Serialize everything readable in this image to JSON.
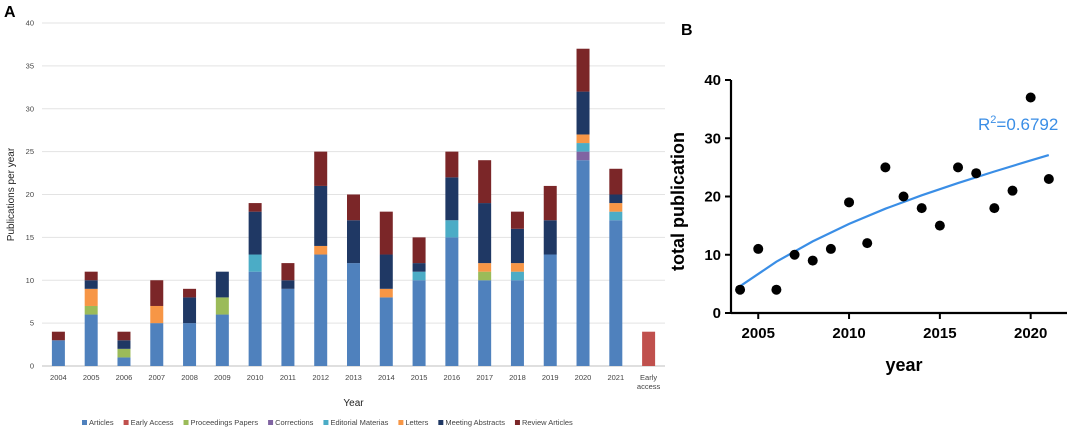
{
  "chart_data": [
    {
      "panel": "A",
      "type": "bar",
      "stacked": true,
      "xlabel": "Year",
      "ylabel": "Publications per year",
      "ylim": [
        0,
        40
      ],
      "yticks": [
        "0",
        "5",
        "10",
        "15",
        "20",
        "25",
        "30",
        "35",
        "40"
      ],
      "categories": [
        "2004",
        "2005",
        "2006",
        "2007",
        "2008",
        "2009",
        "2010",
        "2011",
        "2012",
        "2013",
        "2014",
        "2015",
        "2016",
        "2017",
        "2018",
        "2019",
        "2020",
        "2021",
        "Early access"
      ],
      "grid": true,
      "legend_position": "bottom",
      "series": [
        {
          "name": "Articles",
          "color": "#4f81bd",
          "values": [
            3,
            6,
            1,
            5,
            5,
            6,
            11,
            9,
            13,
            12,
            8,
            10,
            15,
            10,
            10,
            13,
            24,
            17,
            0
          ]
        },
        {
          "name": "Early Access",
          "color": "#c0504d",
          "values": [
            0,
            0,
            0,
            0,
            0,
            0,
            0,
            0,
            0,
            0,
            0,
            0,
            0,
            0,
            0,
            0,
            0,
            0,
            4
          ]
        },
        {
          "name": "Proceedings Papers",
          "color": "#9bbb59",
          "values": [
            0,
            1,
            1,
            0,
            0,
            2,
            0,
            0,
            0,
            0,
            0,
            0,
            0,
            1,
            0,
            0,
            0,
            0,
            0
          ]
        },
        {
          "name": "Corrections",
          "color": "#8064a2",
          "values": [
            0,
            0,
            0,
            0,
            0,
            0,
            0,
            0,
            0,
            0,
            0,
            0,
            0,
            0,
            0,
            0,
            1,
            0,
            0
          ]
        },
        {
          "name": "Editorial Materias",
          "color": "#4bacc6",
          "values": [
            0,
            0,
            0,
            0,
            0,
            0,
            2,
            0,
            0,
            0,
            0,
            1,
            2,
            0,
            1,
            0,
            1,
            1,
            0
          ]
        },
        {
          "name": "Letters",
          "color": "#f79646",
          "values": [
            0,
            2,
            0,
            2,
            0,
            0,
            0,
            0,
            1,
            0,
            1,
            0,
            0,
            1,
            1,
            0,
            1,
            1,
            0
          ]
        },
        {
          "name": "Meeting Abstracts",
          "color": "#1f3864",
          "values": [
            0,
            1,
            1,
            0,
            3,
            3,
            5,
            1,
            7,
            5,
            4,
            1,
            5,
            7,
            4,
            4,
            5,
            1,
            0
          ]
        },
        {
          "name": "Review Articles",
          "color": "#7b2628",
          "values": [
            1,
            1,
            1,
            3,
            1,
            0,
            1,
            2,
            4,
            3,
            5,
            3,
            3,
            5,
            2,
            4,
            5,
            3,
            0
          ]
        }
      ]
    },
    {
      "panel": "B",
      "type": "scatter",
      "xlabel": "year",
      "ylabel": "total publication",
      "xlim": [
        2003.5,
        2022
      ],
      "ylim": [
        0,
        40
      ],
      "xticks": [
        "2005",
        "2010",
        "2015",
        "2020"
      ],
      "yticks": [
        "0",
        "10",
        "20",
        "30",
        "40"
      ],
      "points": {
        "x": [
          2004,
          2005,
          2006,
          2007,
          2008,
          2009,
          2010,
          2011,
          2012,
          2013,
          2014,
          2015,
          2016,
          2017,
          2018,
          2019,
          2020,
          2021
        ],
        "y": [
          4,
          11,
          4,
          10,
          9,
          11,
          19,
          12,
          25,
          20,
          18,
          15,
          25,
          24,
          18,
          21,
          37,
          23
        ]
      },
      "fit_curve": {
        "color": "#3a8ee6",
        "x": [
          2004,
          2006,
          2008,
          2010,
          2012,
          2014,
          2016,
          2018,
          2020,
          2021
        ],
        "y": [
          4.6,
          8.8,
          12.3,
          15.3,
          17.9,
          20.2,
          22.3,
          24.3,
          26.2,
          27.1
        ]
      },
      "annotation": {
        "prefix": "R",
        "sup": "2",
        "suffix": "=0.6792"
      }
    }
  ],
  "panels": {
    "a_label": "A",
    "b_label": "B"
  }
}
